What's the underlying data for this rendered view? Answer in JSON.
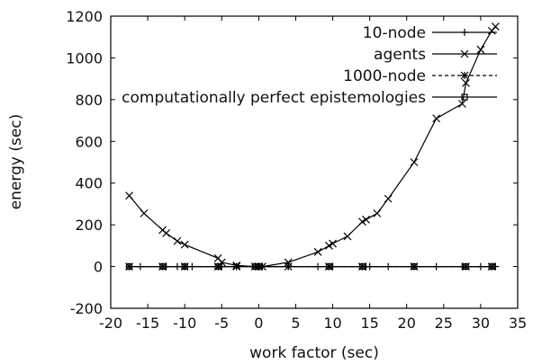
{
  "chart_data": {
    "type": "line",
    "xlabel": "work factor (sec)",
    "ylabel": "energy (sec)",
    "xlim": [
      -20,
      35
    ],
    "ylim": [
      -200,
      1200
    ],
    "xticks": [
      -20,
      -15,
      -10,
      -5,
      0,
      5,
      10,
      15,
      20,
      25,
      30,
      35
    ],
    "yticks": [
      -200,
      0,
      200,
      400,
      600,
      800,
      1000,
      1200
    ],
    "grid": false,
    "legend": "top-right",
    "series": [
      {
        "name": "10-node",
        "marker": "+",
        "dash": "solid",
        "x": [
          -17.5,
          -16,
          -13,
          -12.5,
          -11,
          -10,
          -9,
          -5.5,
          -5,
          -3,
          -0.5,
          0,
          0.5,
          4,
          8,
          9.5,
          10,
          14,
          14.5,
          15,
          17.5,
          21,
          24,
          27.5,
          28,
          30,
          31.5,
          32
        ],
        "y": [
          0,
          0,
          0,
          0,
          0,
          0,
          0,
          0,
          0,
          0,
          0,
          0,
          0,
          0,
          0,
          0,
          0,
          0,
          0,
          0,
          0,
          0,
          0,
          0,
          0,
          0,
          0,
          0
        ]
      },
      {
        "name": "agents",
        "marker": "x",
        "dash": "solid",
        "x": [
          -17.5,
          -15.5,
          -13,
          -12.5,
          -11,
          -10,
          -5.5,
          -5,
          -3,
          -0.5,
          0,
          0.5,
          4,
          8,
          9.5,
          10,
          12,
          14,
          14.5,
          16,
          17.5,
          21,
          24,
          27.5,
          28,
          30,
          31.5,
          32
        ],
        "y": [
          340,
          255,
          175,
          160,
          122,
          105,
          40,
          20,
          5,
          0,
          0,
          0,
          20,
          70,
          100,
          110,
          145,
          215,
          225,
          255,
          325,
          500,
          710,
          780,
          880,
          1040,
          1130,
          1150
        ]
      },
      {
        "name": "1000-node",
        "marker": "*",
        "dash": "dashed",
        "x": [
          -17.5,
          -13,
          -10,
          -5.5,
          -3,
          0,
          4,
          9.5,
          14,
          21,
          28,
          31.5
        ],
        "y": [
          0,
          0,
          0,
          0,
          0,
          0,
          0,
          0,
          0,
          0,
          0,
          0
        ]
      },
      {
        "name": "computationally perfect epistemologies",
        "marker": "square",
        "dash": "solid",
        "x": [
          -17.5,
          -13,
          -10,
          -5.5,
          -0.5,
          0,
          9.5,
          14,
          21,
          28,
          31.5
        ],
        "y": [
          0,
          0,
          0,
          0,
          0,
          0,
          0,
          0,
          0,
          0,
          0
        ]
      }
    ]
  }
}
